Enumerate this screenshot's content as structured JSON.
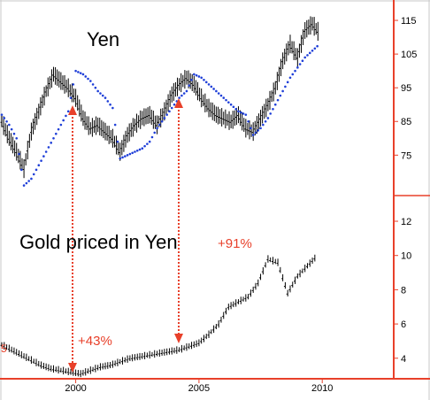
{
  "colors": {
    "axis": "#e8402a",
    "price": "#000000",
    "stop": "#1f3fd8",
    "arrow": "#e8402a",
    "annotation": "#e8402a"
  },
  "chart_data": [
    {
      "type": "line",
      "title": "Yen",
      "x_ticks": [
        "2000",
        "2005",
        "2010"
      ],
      "y_ticks": [
        "115",
        "105",
        "95",
        "85",
        "75"
      ],
      "ylim": [
        63,
        120
      ],
      "xlim": [
        1997.0,
        2012.9
      ],
      "series": [
        {
          "style": "bars",
          "x": [
            1997.0,
            1997.3,
            1997.6,
            1997.9,
            1998.2,
            1998.5,
            1998.8,
            1999.1,
            1999.4,
            1999.7,
            2000.0,
            2000.3,
            2000.6,
            2000.9,
            2001.2,
            2001.5,
            2001.8,
            2002.1,
            2002.4,
            2002.7,
            2003.0,
            2003.3,
            2003.6,
            2003.9,
            2004.2,
            2004.5,
            2004.8,
            2005.1,
            2005.4,
            2005.7,
            2006.0,
            2006.3,
            2006.6,
            2006.9,
            2007.2,
            2007.5,
            2007.8,
            2008.1,
            2008.4,
            2008.7,
            2009.0,
            2009.3,
            2009.6,
            2009.9
          ],
          "y": [
            85,
            80,
            76,
            71,
            82,
            88,
            94,
            99,
            97,
            95,
            92,
            86,
            83,
            84,
            82,
            80,
            76,
            81,
            84,
            86,
            87,
            84,
            88,
            93,
            96,
            98,
            96,
            92,
            89,
            87,
            86,
            85,
            87,
            83,
            82,
            86,
            90,
            95,
            103,
            108,
            104,
            112,
            114,
            111
          ]
        },
        {
          "style": "dots",
          "x": [
            1997.0,
            1997.3,
            1997.6,
            1997.9,
            1998.2,
            1998.5,
            1998.8,
            1999.1,
            1999.4,
            1999.7,
            2000.0,
            2000.3,
            2000.6,
            2000.9,
            2001.2,
            2001.5,
            2001.8,
            2002.1,
            2002.4,
            2002.7,
            2003.0,
            2003.3,
            2003.6,
            2003.9,
            2004.2,
            2004.5,
            2004.8,
            2005.1,
            2005.4,
            2005.7,
            2006.0,
            2006.3,
            2006.6,
            2006.9,
            2007.2,
            2007.5,
            2007.8,
            2008.1,
            2008.4,
            2008.7,
            2009.0,
            2009.3,
            2009.6,
            2009.9
          ],
          "y": [
            87,
            84,
            80,
            66,
            68,
            72,
            76,
            80,
            84,
            88,
            100,
            99,
            97,
            94,
            92,
            89,
            74,
            75,
            76,
            77,
            79,
            83,
            86,
            89,
            92,
            94,
            99,
            98,
            96,
            94,
            92,
            90,
            88,
            87,
            81,
            83,
            86,
            90,
            94,
            98,
            101,
            104,
            106,
            108
          ]
        }
      ]
    },
    {
      "type": "line",
      "title": "Gold priced in Yen",
      "x_ticks": [
        "2000",
        "2005",
        "2010"
      ],
      "y_ticks": [
        "12",
        "10",
        "8",
        "6",
        "4"
      ],
      "ylim": [
        2.8,
        13.5
      ],
      "xlim": [
        1997.0,
        2012.9
      ],
      "series": [
        {
          "style": "bars",
          "x": [
            1997.0,
            1997.4,
            1997.8,
            1998.2,
            1998.6,
            1999.0,
            1999.4,
            1999.8,
            2000.2,
            2000.6,
            2001.0,
            2001.4,
            2001.8,
            2002.2,
            2002.6,
            2003.0,
            2003.4,
            2003.8,
            2004.2,
            2004.6,
            2005.0,
            2005.4,
            2005.8,
            2006.2,
            2006.6,
            2007.0,
            2007.4,
            2007.8,
            2008.2,
            2008.6,
            2009.0,
            2009.4,
            2009.8
          ],
          "y": [
            4.8,
            4.5,
            4.2,
            3.9,
            3.6,
            3.4,
            3.3,
            3.2,
            3.1,
            3.3,
            3.5,
            3.6,
            3.8,
            4.0,
            4.1,
            4.2,
            4.3,
            4.4,
            4.5,
            4.7,
            4.9,
            5.4,
            6.0,
            7.0,
            7.3,
            7.6,
            8.4,
            9.8,
            9.6,
            7.8,
            8.8,
            9.4,
            10.0
          ]
        }
      ]
    }
  ],
  "annotations": {
    "pct_left": "+43%",
    "pct_right": "+91%",
    "left_edge_mark": "5"
  }
}
